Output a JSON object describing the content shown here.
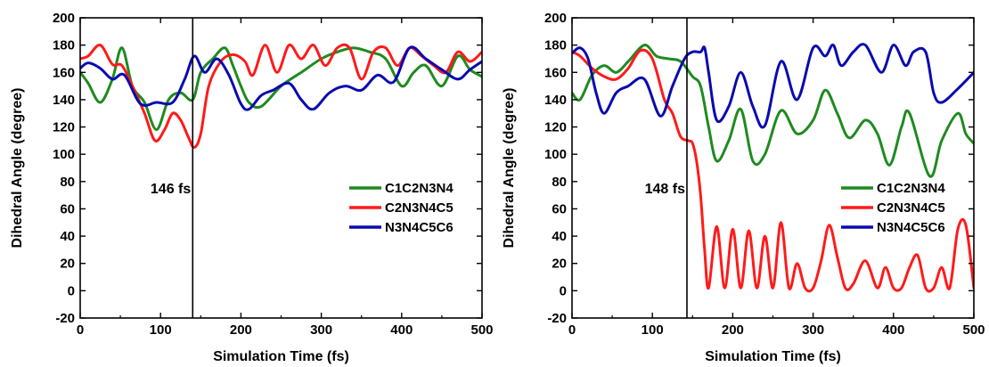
{
  "chart_data": [
    {
      "type": "line",
      "xlabel": "Simulation Time (fs)",
      "ylabel": "Dihedral Angle (degree)",
      "xlim": [
        0,
        500
      ],
      "ylim": [
        -20,
        200
      ],
      "xticks": [
        0,
        100,
        200,
        300,
        400,
        500
      ],
      "yticks": [
        -20,
        0,
        20,
        40,
        60,
        80,
        100,
        120,
        140,
        160,
        180,
        200
      ],
      "grid": false,
      "legend_position": "right",
      "annotation": {
        "text": "146 fs",
        "x": 140
      },
      "series": [
        {
          "name": "C1C2N3N4",
          "color": "#1f8a1f",
          "x": [
            0,
            10,
            25,
            40,
            52,
            65,
            80,
            95,
            110,
            125,
            140,
            150,
            165,
            180,
            190,
            200,
            210,
            225,
            250,
            275,
            300,
            320,
            340,
            360,
            380,
            400,
            415,
            430,
            450,
            470,
            485,
            500
          ],
          "y": [
            160,
            152,
            138,
            155,
            178,
            150,
            138,
            118,
            140,
            145,
            140,
            160,
            170,
            178,
            165,
            150,
            138,
            135,
            150,
            160,
            170,
            175,
            178,
            175,
            170,
            150,
            160,
            165,
            150,
            172,
            162,
            157
          ]
        },
        {
          "name": "C2N3N4C5",
          "color": "#ff1a1a",
          "x": [
            0,
            10,
            25,
            40,
            52,
            65,
            80,
            93,
            105,
            115,
            125,
            135,
            142,
            150,
            160,
            175,
            190,
            205,
            215,
            230,
            245,
            260,
            275,
            290,
            305,
            320,
            335,
            350,
            365,
            380,
            395,
            410,
            425,
            440,
            455,
            470,
            485,
            500
          ],
          "y": [
            170,
            172,
            180,
            166,
            165,
            150,
            130,
            110,
            118,
            130,
            125,
            112,
            105,
            115,
            150,
            168,
            173,
            168,
            158,
            180,
            160,
            180,
            170,
            180,
            165,
            178,
            178,
            155,
            175,
            178,
            165,
            178,
            172,
            165,
            160,
            175,
            168,
            175
          ]
        },
        {
          "name": "N3N4C5C6",
          "color": "#0a0ab0",
          "x": [
            0,
            10,
            25,
            40,
            55,
            75,
            95,
            115,
            130,
            142,
            155,
            170,
            185,
            200,
            210,
            225,
            240,
            260,
            275,
            290,
            310,
            330,
            350,
            370,
            390,
            410,
            430,
            450,
            470,
            485,
            500
          ],
          "y": [
            163,
            167,
            163,
            155,
            158,
            137,
            138,
            138,
            155,
            172,
            160,
            170,
            158,
            137,
            133,
            143,
            147,
            152,
            140,
            133,
            145,
            150,
            147,
            158,
            153,
            178,
            170,
            162,
            155,
            162,
            168
          ]
        }
      ]
    },
    {
      "type": "line",
      "xlabel": "Simulation Time (fs)",
      "ylabel": "Dihedral Angle (degree)",
      "xlim": [
        0,
        500
      ],
      "ylim": [
        -20,
        200
      ],
      "xticks": [
        0,
        100,
        200,
        300,
        400,
        500
      ],
      "yticks": [
        -20,
        0,
        20,
        40,
        60,
        80,
        100,
        120,
        140,
        160,
        180,
        200
      ],
      "grid": false,
      "legend_position": "right",
      "annotation": {
        "text": "148 fs",
        "x": 143
      },
      "series": [
        {
          "name": "C1C2N3N4",
          "color": "#1f8a1f",
          "x": [
            0,
            10,
            25,
            40,
            55,
            70,
            90,
            105,
            120,
            135,
            150,
            160,
            170,
            180,
            195,
            210,
            225,
            240,
            260,
            280,
            300,
            315,
            330,
            345,
            365,
            380,
            395,
            410,
            420,
            445,
            460,
            480,
            490,
            500
          ],
          "y": [
            145,
            140,
            158,
            165,
            160,
            168,
            180,
            172,
            170,
            168,
            157,
            150,
            120,
            95,
            110,
            133,
            95,
            100,
            132,
            115,
            125,
            147,
            130,
            112,
            125,
            115,
            92,
            120,
            130,
            84,
            110,
            130,
            115,
            108
          ]
        },
        {
          "name": "C2N3N4C5",
          "color": "#ff1a1a",
          "x": [
            0,
            10,
            25,
            40,
            55,
            70,
            85,
            100,
            115,
            125,
            135,
            145,
            150,
            155,
            160,
            165,
            170,
            180,
            190,
            200,
            210,
            220,
            230,
            240,
            250,
            260,
            270,
            280,
            290,
            300,
            310,
            320,
            330,
            340,
            350,
            365,
            380,
            390,
            400,
            410,
            420,
            430,
            440,
            450,
            460,
            470,
            480,
            490,
            500
          ],
          "y": [
            175,
            172,
            163,
            157,
            155,
            163,
            176,
            170,
            140,
            130,
            113,
            110,
            108,
            95,
            70,
            30,
            2,
            47,
            2,
            45,
            2,
            44,
            2,
            40,
            2,
            50,
            2,
            20,
            2,
            2,
            22,
            48,
            25,
            2,
            5,
            22,
            2,
            17,
            2,
            2,
            17,
            26,
            2,
            2,
            17,
            2,
            45,
            48,
            2
          ]
        },
        {
          "name": "N3N4C5C6",
          "color": "#0a0ab0",
          "x": [
            0,
            10,
            20,
            30,
            40,
            55,
            70,
            90,
            110,
            125,
            140,
            150,
            160,
            165,
            170,
            180,
            195,
            210,
            225,
            240,
            260,
            280,
            300,
            315,
            325,
            335,
            350,
            365,
            385,
            400,
            415,
            425,
            440,
            450,
            460,
            480,
            500
          ],
          "y": [
            174,
            178,
            170,
            145,
            130,
            145,
            150,
            155,
            128,
            150,
            170,
            175,
            175,
            178,
            160,
            125,
            135,
            160,
            135,
            121,
            168,
            140,
            178,
            172,
            180,
            165,
            175,
            180,
            160,
            180,
            165,
            175,
            175,
            145,
            138,
            148,
            160
          ]
        }
      ]
    }
  ]
}
